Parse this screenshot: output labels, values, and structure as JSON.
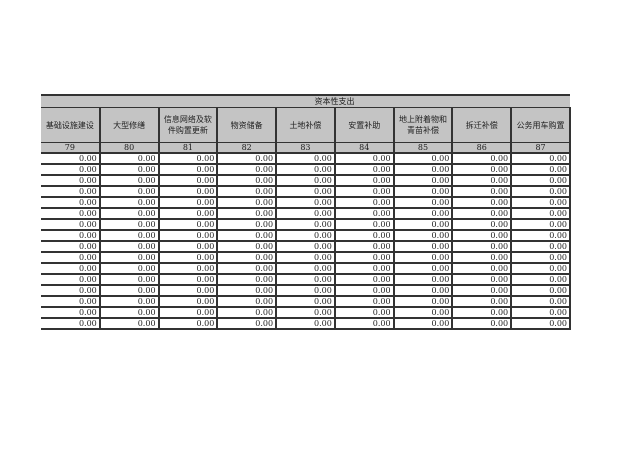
{
  "table": {
    "group_title": "资本性支出",
    "headers": [
      "基础设施建设",
      "大型修缮",
      "信息网络及软件购置更新",
      "物资储备",
      "土地补偿",
      "安置补助",
      "地上附着物和青苗补偿",
      "拆迁补偿",
      "公务用车购置"
    ],
    "codes": [
      "79",
      "80",
      "81",
      "82",
      "83",
      "84",
      "85",
      "86",
      "87"
    ],
    "rows": [
      [
        "0.00",
        "0.00",
        "0.00",
        "0.00",
        "0.00",
        "0.00",
        "0.00",
        "0.00",
        "0.00"
      ],
      [
        "0.00",
        "0.00",
        "0.00",
        "0.00",
        "0.00",
        "0.00",
        "0.00",
        "0.00",
        "0.00"
      ],
      [
        "0.00",
        "0.00",
        "0.00",
        "0.00",
        "0.00",
        "0.00",
        "0.00",
        "0.00",
        "0.00"
      ],
      [
        "0.00",
        "0.00",
        "0.00",
        "0.00",
        "0.00",
        "0.00",
        "0.00",
        "0.00",
        "0.00"
      ],
      [
        "0.00",
        "0.00",
        "0.00",
        "0.00",
        "0.00",
        "0.00",
        "0.00",
        "0.00",
        "0.00"
      ],
      [
        "0.00",
        "0.00",
        "0.00",
        "0.00",
        "0.00",
        "0.00",
        "0.00",
        "0.00",
        "0.00"
      ],
      [
        "0.00",
        "0.00",
        "0.00",
        "0.00",
        "0.00",
        "0.00",
        "0.00",
        "0.00",
        "0.00"
      ],
      [
        "0.00",
        "0.00",
        "0.00",
        "0.00",
        "0.00",
        "0.00",
        "0.00",
        "0.00",
        "0.00"
      ],
      [
        "0.00",
        "0.00",
        "0.00",
        "0.00",
        "0.00",
        "0.00",
        "0.00",
        "0.00",
        "0.00"
      ],
      [
        "0.00",
        "0.00",
        "0.00",
        "0.00",
        "0.00",
        "0.00",
        "0.00",
        "0.00",
        "0.00"
      ],
      [
        "0.00",
        "0.00",
        "0.00",
        "0.00",
        "0.00",
        "0.00",
        "0.00",
        "0.00",
        "0.00"
      ],
      [
        "0.00",
        "0.00",
        "0.00",
        "0.00",
        "0.00",
        "0.00",
        "0.00",
        "0.00",
        "0.00"
      ],
      [
        "0.00",
        "0.00",
        "0.00",
        "0.00",
        "0.00",
        "0.00",
        "0.00",
        "0.00",
        "0.00"
      ],
      [
        "0.00",
        "0.00",
        "0.00",
        "0.00",
        "0.00",
        "0.00",
        "0.00",
        "0.00",
        "0.00"
      ],
      [
        "0.00",
        "0.00",
        "0.00",
        "0.00",
        "0.00",
        "0.00",
        "0.00",
        "0.00",
        "0.00"
      ],
      [
        "0.00",
        "0.00",
        "0.00",
        "0.00",
        "0.00",
        "0.00",
        "0.00",
        "0.00",
        "0.00"
      ]
    ]
  }
}
